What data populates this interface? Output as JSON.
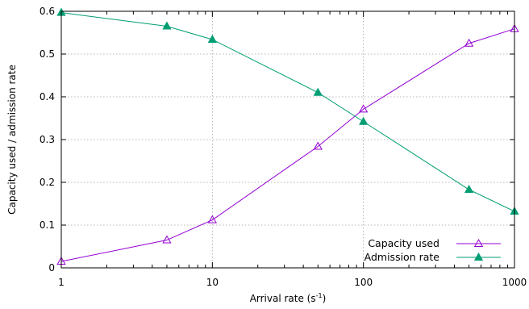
{
  "chart_data": {
    "type": "line",
    "xlabel": "Arrival rate (s",
    "xlabel_sup": "-1",
    "xlabel_close": ")",
    "ylabel": "Capacity used / admission rate",
    "xscale": "log",
    "xlim": [
      1,
      1000
    ],
    "ylim": [
      0,
      0.6
    ],
    "x_ticks": [
      1,
      10,
      100,
      1000
    ],
    "x_tick_labels": [
      "1",
      "10",
      "100",
      "1000"
    ],
    "y_ticks": [
      0,
      0.1,
      0.2,
      0.3,
      0.4,
      0.5,
      0.6
    ],
    "y_tick_labels": [
      "0",
      "0.1",
      "0.2",
      "0.3",
      "0.4",
      "0.5",
      "0.6"
    ],
    "grid": true,
    "legend_position": "bottom-right",
    "x": [
      1,
      5,
      10,
      50,
      100,
      500,
      1000
    ],
    "series": [
      {
        "name": "Capacity used",
        "color": "#9400d3",
        "marker": "open-triangle",
        "values": [
          0.015,
          0.065,
          0.112,
          0.284,
          0.371,
          0.525,
          0.559
        ]
      },
      {
        "name": "Admission rate",
        "color": "#009e73",
        "marker": "filled-triangle",
        "values": [
          0.597,
          0.565,
          0.534,
          0.41,
          0.342,
          0.183,
          0.132
        ]
      }
    ]
  }
}
